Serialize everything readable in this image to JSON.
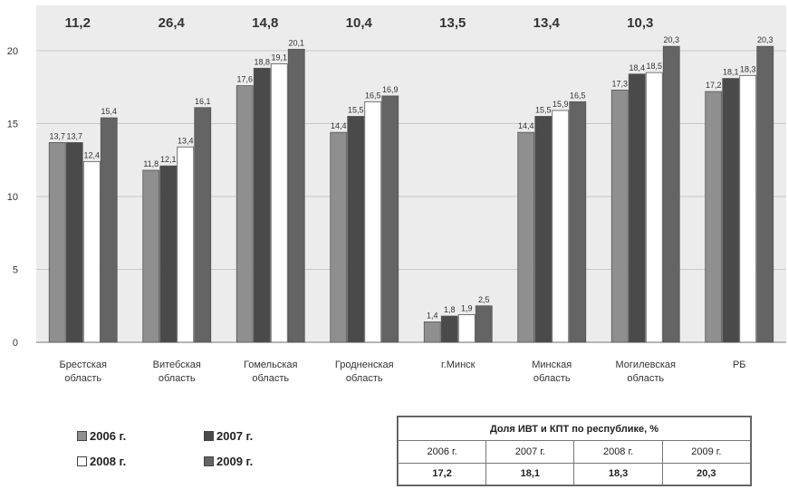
{
  "chart_data": {
    "type": "bar",
    "categories": [
      "Брестская область",
      "Витебская область",
      "Гомельская область",
      "Гродненская область",
      "г.Минск",
      "Минская область",
      "Могилевская область",
      "РБ"
    ],
    "top_labels": [
      "11,2",
      "26,4",
      "14,8",
      "10,4",
      "13,5",
      "13,4",
      "10,3",
      ""
    ],
    "series": [
      {
        "name": "2006 г.",
        "color": "#8f8f8f",
        "values": [
          13.7,
          11.8,
          17.6,
          14.4,
          1.4,
          14.4,
          17.3,
          17.2
        ],
        "labels": [
          "13,7",
          "11,8",
          "17,6",
          "14,4",
          "1,4",
          "14,4",
          "17,3",
          "17,2"
        ]
      },
      {
        "name": "2007 г.",
        "color": "#4a4a4a",
        "values": [
          13.7,
          12.1,
          18.8,
          15.5,
          1.8,
          15.5,
          18.4,
          18.1
        ],
        "labels": [
          "13,7",
          "12,1",
          "18,8",
          "15,5",
          "1,8",
          "15,5",
          "18,4",
          "18,1"
        ]
      },
      {
        "name": "2008 г.",
        "color": "#ffffff",
        "values": [
          12.4,
          13.4,
          19.1,
          16.5,
          1.9,
          15.9,
          18.5,
          18.3
        ],
        "labels": [
          "12,4",
          "13,4",
          "19,1",
          "16,5",
          "1,9",
          "15,9",
          "18,5",
          "18,3"
        ]
      },
      {
        "name": "2009 г.",
        "color": "#646464",
        "values": [
          15.4,
          16.1,
          20.1,
          16.9,
          2.5,
          16.5,
          20.3,
          20.3
        ],
        "labels": [
          "15,4",
          "16,1",
          "20,1",
          "16,9",
          "2,5",
          "16,5",
          "20,3",
          "20,3"
        ]
      }
    ],
    "yticks": [
      "0",
      "5",
      "10",
      "15",
      "20"
    ],
    "ylim": [
      0,
      22
    ],
    "grid": true,
    "legend_position": "bottom-left"
  },
  "summary_table": {
    "title": "Доля ИВТ и КПТ по республике, %",
    "headers": [
      "2006 г.",
      "2007 г.",
      "2008 г.",
      "2009 г."
    ],
    "values": [
      "17,2",
      "18,1",
      "18,3",
      "20,3"
    ]
  }
}
